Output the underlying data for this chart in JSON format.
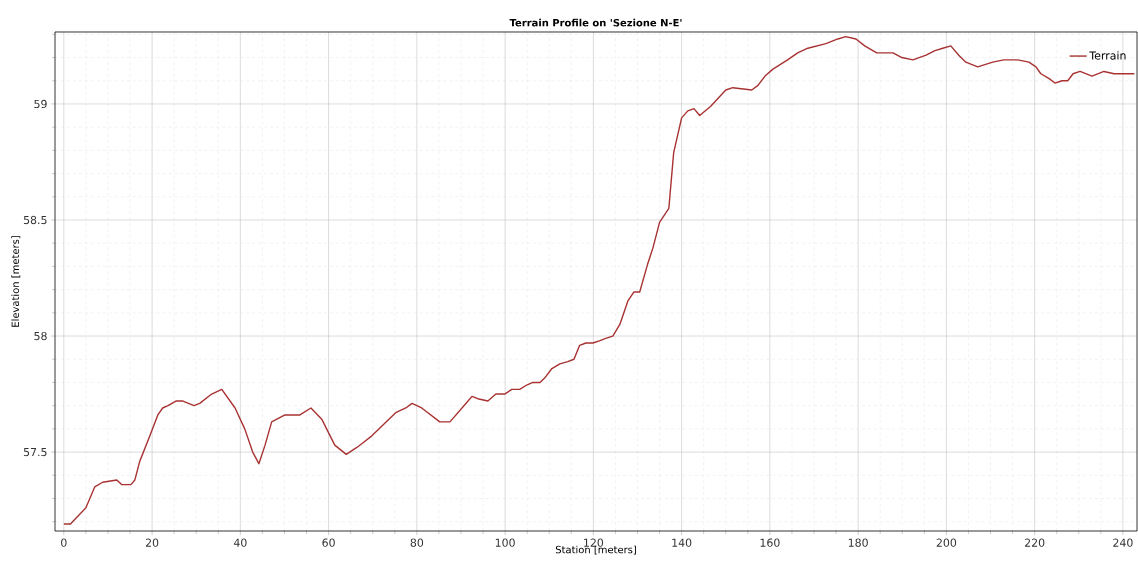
{
  "chart_data": {
    "type": "line",
    "title": "Terrain Profile on 'Sezione N-E'",
    "xlabel": "Station [meters]",
    "ylabel": "Elevation [meters]",
    "xlim": [
      -2,
      243.2
    ],
    "ylim": [
      57.16,
      59.31
    ],
    "xticks": [
      0,
      {
        "value": 5,
        "label": null
      },
      {
        "value": 10,
        "label": null
      },
      {
        "value": 15,
        "label": null
      },
      20,
      {
        "value": 25,
        "label": null
      },
      {
        "value": 30,
        "label": null
      },
      {
        "value": 35,
        "label": null
      },
      40,
      {
        "value": 45,
        "label": null
      },
      {
        "value": 50,
        "label": null
      },
      {
        "value": 55,
        "label": null
      },
      60,
      {
        "value": 65,
        "label": null
      },
      {
        "value": 70,
        "label": null
      },
      {
        "value": 75,
        "label": null
      },
      80,
      {
        "value": 85,
        "label": null
      },
      {
        "value": 90,
        "label": null
      },
      {
        "value": 95,
        "label": null
      },
      100,
      {
        "value": 105,
        "label": null
      },
      {
        "value": 110,
        "label": null
      },
      {
        "value": 115,
        "label": null
      },
      120,
      {
        "value": 125,
        "label": null
      },
      {
        "value": 130,
        "label": null
      },
      {
        "value": 135,
        "label": null
      },
      140,
      {
        "value": 145,
        "label": null
      },
      {
        "value": 150,
        "label": null
      },
      {
        "value": 155,
        "label": null
      },
      160,
      {
        "value": 165,
        "label": null
      },
      {
        "value": 170,
        "label": null
      },
      {
        "value": 175,
        "label": null
      },
      180,
      {
        "value": 185,
        "label": null
      },
      {
        "value": 190,
        "label": null
      },
      {
        "value": 195,
        "label": null
      },
      200,
      {
        "value": 205,
        "label": null
      },
      {
        "value": 210,
        "label": null
      },
      {
        "value": 215,
        "label": null
      },
      220,
      {
        "value": 225,
        "label": null
      },
      {
        "value": 230,
        "label": null
      },
      {
        "value": 235,
        "label": null
      },
      240
    ],
    "yticks": [
      {
        "value": 57.2,
        "label": null
      },
      {
        "value": 57.3,
        "label": null
      },
      {
        "value": 57.4,
        "label": null
      },
      57.5,
      {
        "value": 57.6,
        "label": null
      },
      {
        "value": 57.7,
        "label": null
      },
      {
        "value": 57.8,
        "label": null
      },
      {
        "value": 57.9,
        "label": null
      },
      58,
      {
        "value": 58.1,
        "label": null
      },
      {
        "value": 58.2,
        "label": null
      },
      {
        "value": 58.3,
        "label": null
      },
      {
        "value": 58.4,
        "label": null
      },
      58.5,
      {
        "value": 58.6,
        "label": null
      },
      {
        "value": 58.7,
        "label": null
      },
      {
        "value": 58.8,
        "label": null
      },
      {
        "value": 58.9,
        "label": null
      },
      59,
      {
        "value": 59.1,
        "label": null
      },
      {
        "value": 59.2,
        "label": null
      },
      {
        "value": 59.3,
        "label": null
      }
    ],
    "grid": true,
    "legend": "top right",
    "marker": "none",
    "line_style": "solid",
    "x": [
      0,
      1.5,
      5,
      7,
      8.8,
      12,
      13.1,
      15.2,
      16.1,
      17.2,
      19.5,
      21.3,
      22.4,
      23.6,
      25.4,
      27,
      29.5,
      30.8,
      33.5,
      35.8,
      38.8,
      41,
      42.8,
      44.2,
      45.6,
      47.1,
      50.1,
      53.5,
      56,
      58.5,
      61.4,
      64,
      66.4,
      67.8,
      69.8,
      72.5,
      75.2,
      77.5,
      78.9,
      81.1,
      85.2,
      87.5,
      91.6,
      92.5,
      93.8,
      96.1,
      97.9,
      99.9,
      101.5,
      103.3,
      105,
      106.3,
      107.9,
      109,
      110.6,
      112.4,
      114.2,
      115.6,
      116.9,
      118.3,
      119.9,
      121.5,
      122.8,
      124.4,
      126,
      127.8,
      129.2,
      130.5,
      132.3,
      133.5,
      135,
      137.1,
      138.2,
      140,
      141.4,
      142.8,
      144.1,
      146.6,
      150,
      151.6,
      155.9,
      157.3,
      158.9,
      160.7,
      164,
      166.3,
      168.6,
      172.7,
      175.4,
      177.2,
      179.5,
      181.5,
      184.2,
      187.9,
      189.9,
      192.4,
      195.4,
      197.4,
      199.2,
      201,
      202.8,
      204.4,
      207.1,
      210.5,
      213,
      216.2,
      218.7,
      220.3,
      221.4,
      223.2,
      224.6,
      226.2,
      227.5,
      228.7,
      230.3,
      233,
      235.7,
      238,
      242.6
    ],
    "series": [
      {
        "name": "Terrain",
        "color": "#a83232",
        "values": [
          57.19,
          57.19,
          57.26,
          57.35,
          57.37,
          57.38,
          57.36,
          57.36,
          57.38,
          57.46,
          57.57,
          57.66,
          57.69,
          57.7,
          57.72,
          57.72,
          57.7,
          57.71,
          57.75,
          57.77,
          57.69,
          57.6,
          57.5,
          57.45,
          57.53,
          57.63,
          57.66,
          57.66,
          57.69,
          57.64,
          57.53,
          57.49,
          57.52,
          57.54,
          57.57,
          57.62,
          57.67,
          57.69,
          57.71,
          57.69,
          57.63,
          57.63,
          57.72,
          57.74,
          57.73,
          57.72,
          57.75,
          57.75,
          57.77,
          57.77,
          57.79,
          57.8,
          57.8,
          57.82,
          57.86,
          57.88,
          57.89,
          57.9,
          57.96,
          57.97,
          57.97,
          57.98,
          57.99,
          58,
          58.05,
          58.15,
          58.19,
          58.19,
          58.31,
          58.38,
          58.49,
          58.55,
          58.79,
          58.94,
          58.97,
          58.98,
          58.95,
          58.99,
          59.06,
          59.07,
          59.06,
          59.08,
          59.12,
          59.15,
          59.19,
          59.22,
          59.24,
          59.26,
          59.28,
          59.29,
          59.28,
          59.25,
          59.22,
          59.22,
          59.2,
          59.19,
          59.21,
          59.23,
          59.24,
          59.25,
          59.21,
          59.18,
          59.16,
          59.18,
          59.19,
          59.19,
          59.18,
          59.16,
          59.13,
          59.11,
          59.09,
          59.1,
          59.1,
          59.13,
          59.14,
          59.12,
          59.14,
          59.13,
          59.13
        ]
      }
    ]
  }
}
